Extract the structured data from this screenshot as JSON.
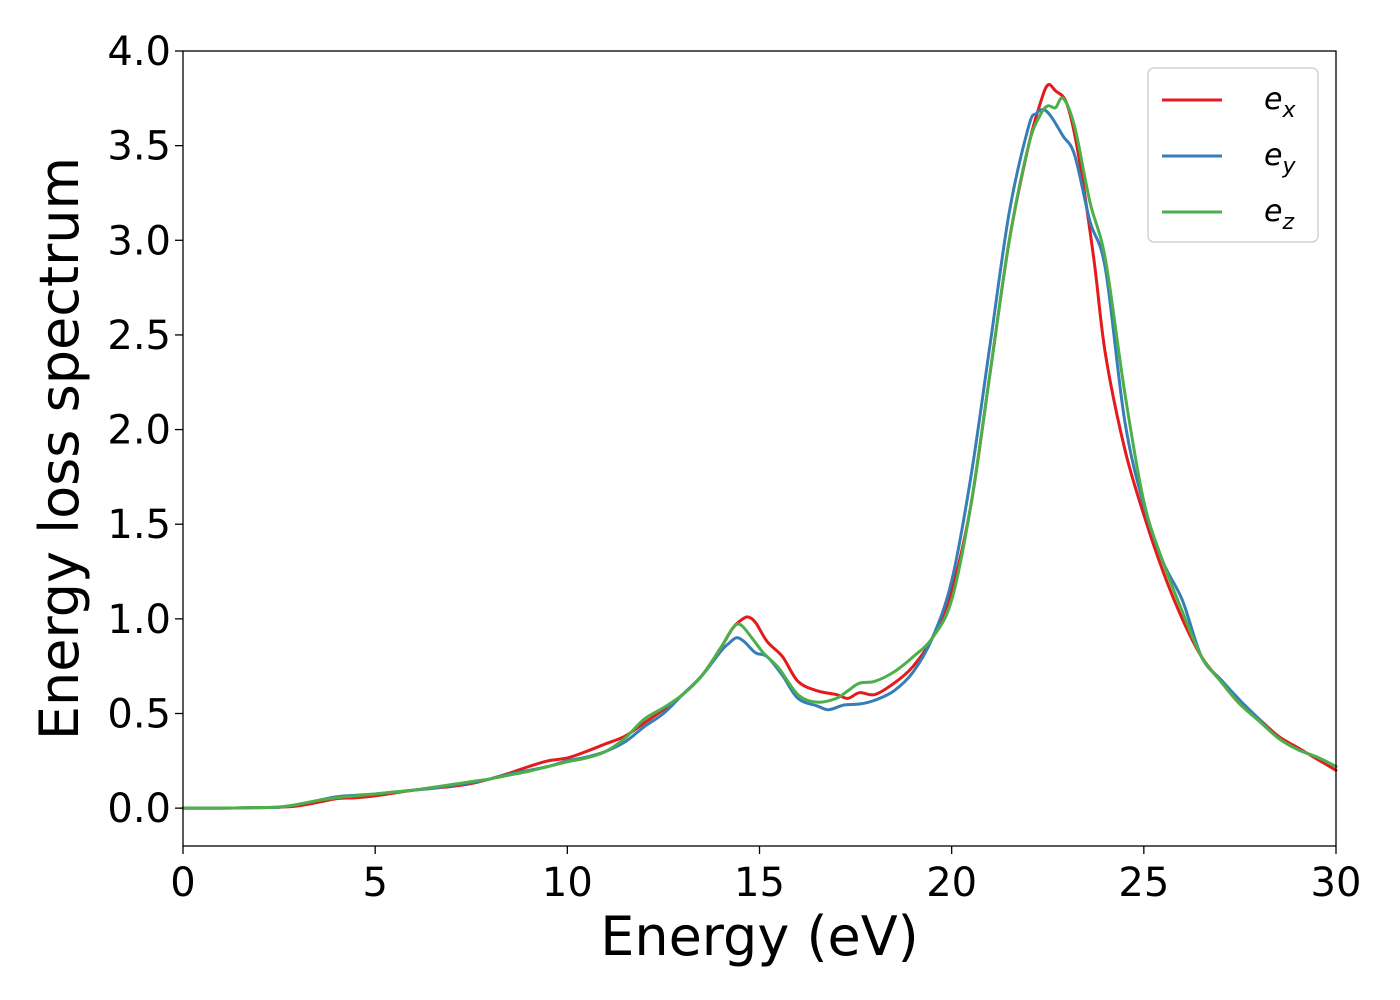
{
  "chart_data": {
    "type": "line",
    "xlabel": "Energy (eV)",
    "ylabel": "Energy loss spectrum",
    "xlim": [
      0,
      30
    ],
    "ylim": [
      -0.2,
      4.0
    ],
    "xticks": [
      "0",
      "5",
      "10",
      "15",
      "20",
      "25",
      "30"
    ],
    "yticks": [
      "0.0",
      "0.5",
      "1.0",
      "1.5",
      "2.0",
      "2.5",
      "3.0",
      "3.5",
      "4.0"
    ],
    "grid": false,
    "legend_placement": "top-right",
    "series": [
      {
        "name": "e_x",
        "label_base": "e",
        "label_sub": "x",
        "color": "#e41a1c",
        "x": [
          0,
          1,
          2,
          2.5,
          3,
          3.5,
          4,
          4.5,
          5,
          5.5,
          6,
          6.5,
          7,
          7.5,
          8,
          8.5,
          9,
          9.5,
          10,
          10.5,
          11,
          11.5,
          12,
          12.5,
          13,
          13.5,
          14,
          14.3,
          14.5,
          14.7,
          14.9,
          15.2,
          15.6,
          16,
          16.5,
          17,
          17.3,
          17.6,
          18,
          18.5,
          19,
          19.5,
          20,
          20.5,
          21,
          21.5,
          22,
          22.3,
          22.5,
          22.7,
          23,
          23.3,
          23.7,
          24,
          24.5,
          25,
          25.5,
          26,
          26.5,
          27,
          27.5,
          28,
          28.5,
          29,
          29.5,
          30
        ],
        "y": [
          0.0,
          0.0,
          0.003,
          0.005,
          0.012,
          0.03,
          0.05,
          0.055,
          0.065,
          0.08,
          0.095,
          0.105,
          0.115,
          0.13,
          0.155,
          0.185,
          0.22,
          0.25,
          0.265,
          0.3,
          0.34,
          0.38,
          0.45,
          0.52,
          0.6,
          0.7,
          0.85,
          0.95,
          0.99,
          1.01,
          0.98,
          0.88,
          0.8,
          0.67,
          0.62,
          0.6,
          0.58,
          0.61,
          0.6,
          0.66,
          0.75,
          0.9,
          1.15,
          1.6,
          2.3,
          3.0,
          3.5,
          3.72,
          3.82,
          3.79,
          3.72,
          3.45,
          2.9,
          2.4,
          1.9,
          1.55,
          1.25,
          1.0,
          0.8,
          0.67,
          0.55,
          0.47,
          0.38,
          0.32,
          0.26,
          0.2
        ]
      },
      {
        "name": "e_y",
        "label_base": "e",
        "label_sub": "y",
        "color": "#377eb8",
        "x": [
          0,
          1,
          2,
          2.5,
          3,
          3.5,
          4,
          4.5,
          5,
          5.5,
          6,
          6.5,
          7,
          7.5,
          8,
          8.5,
          9,
          9.5,
          10,
          10.5,
          11,
          11.5,
          12,
          12.5,
          13,
          13.5,
          14,
          14.2,
          14.4,
          14.6,
          14.9,
          15.2,
          15.6,
          16,
          16.5,
          16.8,
          17.2,
          17.6,
          18,
          18.5,
          19,
          19.5,
          20,
          20.5,
          21,
          21.5,
          22,
          22.2,
          22.4,
          22.6,
          22.9,
          23.2,
          23.6,
          24,
          24.5,
          25,
          25.5,
          26,
          26.5,
          27,
          27.5,
          28,
          28.5,
          29,
          29.5,
          30
        ],
        "y": [
          0.0,
          0.0,
          0.003,
          0.005,
          0.02,
          0.04,
          0.06,
          0.068,
          0.075,
          0.085,
          0.095,
          0.105,
          0.12,
          0.135,
          0.155,
          0.18,
          0.2,
          0.22,
          0.25,
          0.27,
          0.3,
          0.35,
          0.43,
          0.5,
          0.6,
          0.7,
          0.83,
          0.87,
          0.9,
          0.88,
          0.82,
          0.8,
          0.7,
          0.58,
          0.54,
          0.52,
          0.545,
          0.55,
          0.57,
          0.62,
          0.72,
          0.9,
          1.2,
          1.75,
          2.45,
          3.15,
          3.6,
          3.67,
          3.69,
          3.65,
          3.55,
          3.45,
          3.1,
          2.85,
          2.05,
          1.6,
          1.3,
          1.1,
          0.8,
          0.68,
          0.57,
          0.47,
          0.37,
          0.31,
          0.27,
          0.22
        ]
      },
      {
        "name": "e_z",
        "label_base": "e",
        "label_sub": "z",
        "color": "#4daf4a",
        "x": [
          0,
          1,
          2,
          2.5,
          3,
          3.5,
          4,
          4.5,
          5,
          5.5,
          6,
          6.5,
          7,
          7.5,
          8,
          8.5,
          9,
          9.5,
          10,
          10.5,
          11,
          11.5,
          12,
          12.5,
          13,
          13.5,
          14,
          14.3,
          14.5,
          14.8,
          15.1,
          15.5,
          16,
          16.5,
          17,
          17.3,
          17.6,
          18,
          18.5,
          19,
          19.5,
          20,
          20.5,
          21,
          21.5,
          22,
          22.3,
          22.5,
          22.7,
          22.9,
          23.2,
          23.6,
          24,
          24.5,
          25,
          25.5,
          26,
          26.5,
          27,
          27.5,
          28,
          28.5,
          29,
          29.5,
          30
        ],
        "y": [
          0.0,
          0.0,
          0.003,
          0.006,
          0.02,
          0.04,
          0.055,
          0.065,
          0.075,
          0.085,
          0.095,
          0.11,
          0.125,
          0.14,
          0.155,
          0.175,
          0.195,
          0.22,
          0.245,
          0.265,
          0.3,
          0.37,
          0.47,
          0.53,
          0.6,
          0.7,
          0.85,
          0.95,
          0.97,
          0.9,
          0.82,
          0.74,
          0.6,
          0.56,
          0.58,
          0.62,
          0.66,
          0.67,
          0.72,
          0.8,
          0.9,
          1.1,
          1.6,
          2.3,
          3.0,
          3.5,
          3.66,
          3.71,
          3.7,
          3.75,
          3.6,
          3.2,
          2.9,
          2.2,
          1.62,
          1.3,
          1.04,
          0.8,
          0.67,
          0.55,
          0.46,
          0.37,
          0.31,
          0.27,
          0.22
        ]
      }
    ]
  }
}
